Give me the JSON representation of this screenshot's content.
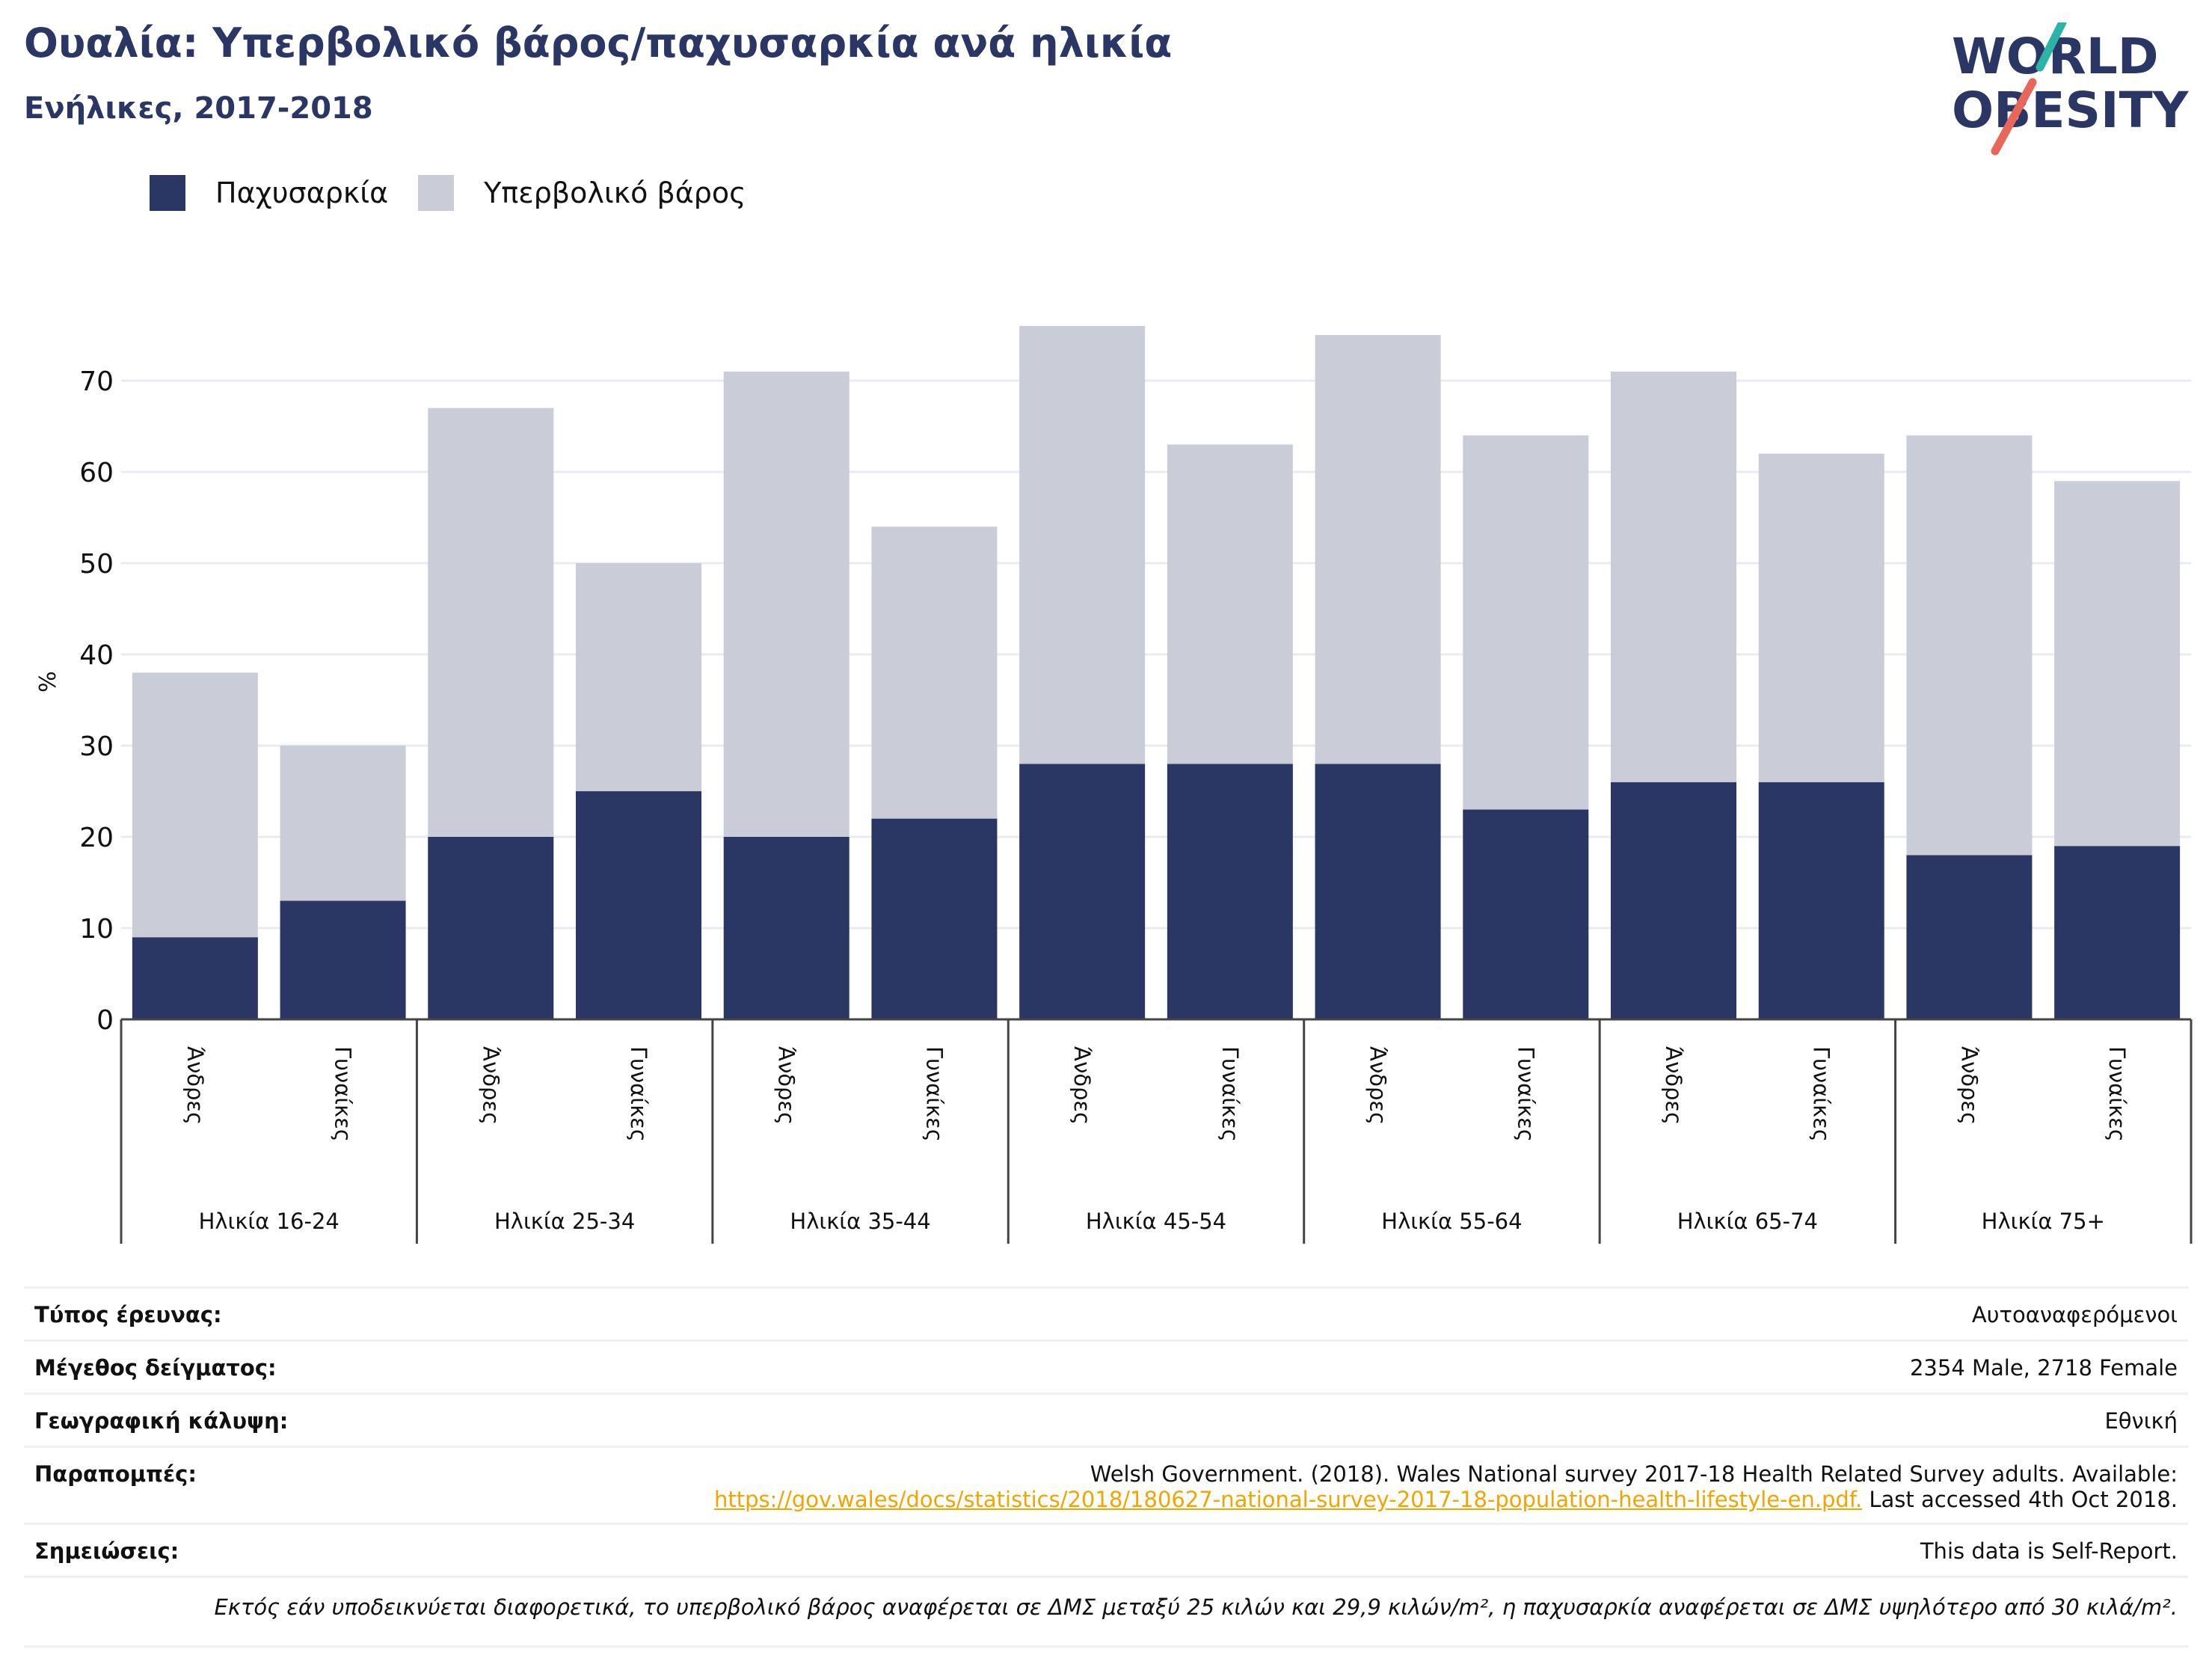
{
  "header": {
    "title": "Ουαλία: Υπερβολικό βάρος/παχυσαρκία ανά ηλικία",
    "subtitle": "Ενήλικες, 2017-2018"
  },
  "logo": {
    "line1": "WORLD",
    "line2": "OBESITY",
    "colors": {
      "text": "#2a3663",
      "slash_top": "#2bb3a8",
      "slash_bottom": "#e8675a"
    }
  },
  "legend": [
    {
      "label": "Παχυσαρκία",
      "color": "#2a3663"
    },
    {
      "label": "Υπερβολικό βάρος",
      "color": "#cacdd8"
    }
  ],
  "chart_data": {
    "type": "bar",
    "stacked": true,
    "ylabel": "%",
    "ylim": [
      0,
      80
    ],
    "yticks": [
      0,
      10,
      20,
      30,
      40,
      50,
      60,
      70
    ],
    "grid": true,
    "legend_position": "top-left",
    "groups": [
      "Ηλικία 16-24",
      "Ηλικία 25-34",
      "Ηλικία 35-44",
      "Ηλικία 45-54",
      "Ηλικία 55-64",
      "Ηλικία 65-74",
      "Ηλικία 75+"
    ],
    "sublabels": [
      "Άνδρες",
      "Γυναίκες"
    ],
    "categories": [
      "Άνδρες",
      "Γυναίκες",
      "Άνδρες",
      "Γυναίκες",
      "Άνδρες",
      "Γυναίκες",
      "Άνδρες",
      "Γυναίκες",
      "Άνδρες",
      "Γυναίκες",
      "Άνδρες",
      "Γυναίκες",
      "Άνδρες",
      "Γυναίκες"
    ],
    "series": [
      {
        "name": "Παχυσαρκία",
        "color": "#2a3663",
        "values": [
          9,
          13,
          20,
          25,
          20,
          22,
          28,
          28,
          28,
          23,
          26,
          26,
          18,
          19
        ]
      },
      {
        "name": "Υπερβολικό βάρος",
        "color": "#cacdd8",
        "values": [
          29,
          17,
          47,
          25,
          51,
          32,
          48,
          35,
          47,
          41,
          45,
          36,
          46,
          40
        ]
      }
    ]
  },
  "meta": {
    "survey_type": {
      "label": "Τύπος έρευνας:",
      "value": "Αυτοαναφερόμενοι"
    },
    "sample_size": {
      "label": "Μέγεθος δείγματος:",
      "value": "2354 Male, 2718 Female"
    },
    "coverage": {
      "label": "Γεωγραφική κάλυψη:",
      "value": "Εθνική"
    },
    "references": {
      "label": "Παραπομπές:",
      "line1": "Welsh Government. (2018). Wales National survey 2017-18 Health Related Survey adults. Available:",
      "link": "https://gov.wales/docs/statistics/2018/180627-national-survey-2017-18-population-health-lifestyle-en.pdf.",
      "after_link": " Last accessed 4th Oct 2018."
    },
    "notes": {
      "label": "Σημειώσεις:",
      "value": "This data is Self-Report."
    },
    "footnote": "Εκτός εάν υποδεικνύεται διαφορετικά, το υπερβολικό βάρος αναφέρεται σε ΔΜΣ μεταξύ 25 κιλών και 29,9 κιλών/m², η παχυσαρκία αναφέρεται σε ΔΜΣ υψηλότερο από 30 κιλά/m²."
  }
}
